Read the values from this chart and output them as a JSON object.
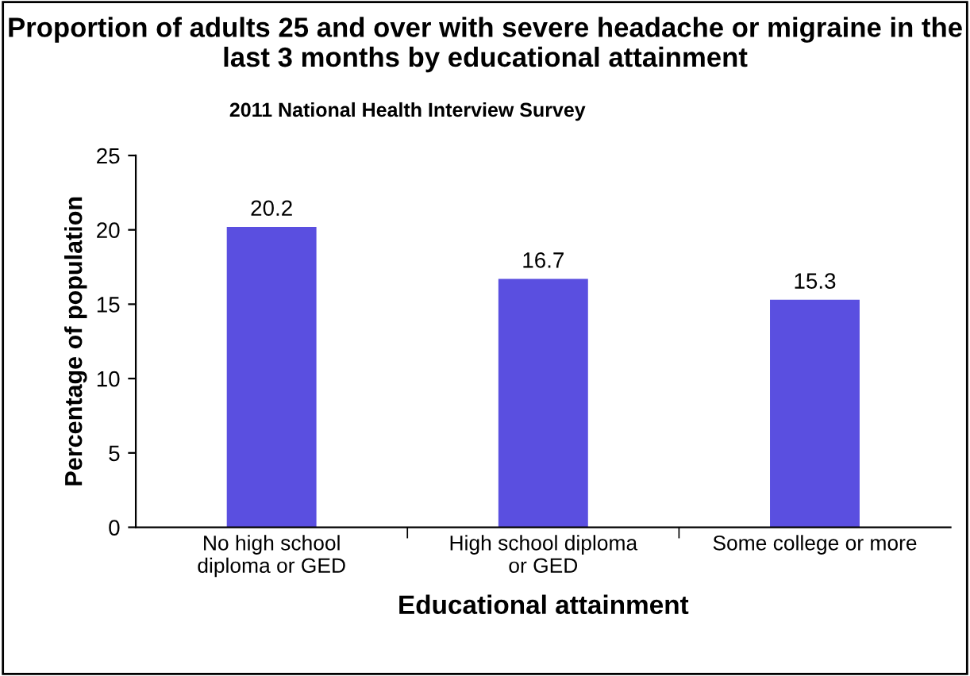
{
  "chart_data": {
    "type": "bar",
    "title": "Proportion of adults 25 and over with severe headache or migraine in the last 3 months by educational attainment",
    "subtitle": "2011 National Health Interview Survey",
    "xlabel": "Educational attainment",
    "ylabel": "Percentage of population",
    "categories": [
      "No high school\ndiploma or GED",
      "High school diploma\nor GED",
      "Some college or more"
    ],
    "values": [
      20.2,
      16.7,
      15.3
    ],
    "color": "#5a4fe0",
    "ylim": [
      0,
      25
    ],
    "yticks": [
      0,
      5,
      10,
      15,
      20,
      25
    ],
    "grid": false,
    "data_labels": true
  }
}
